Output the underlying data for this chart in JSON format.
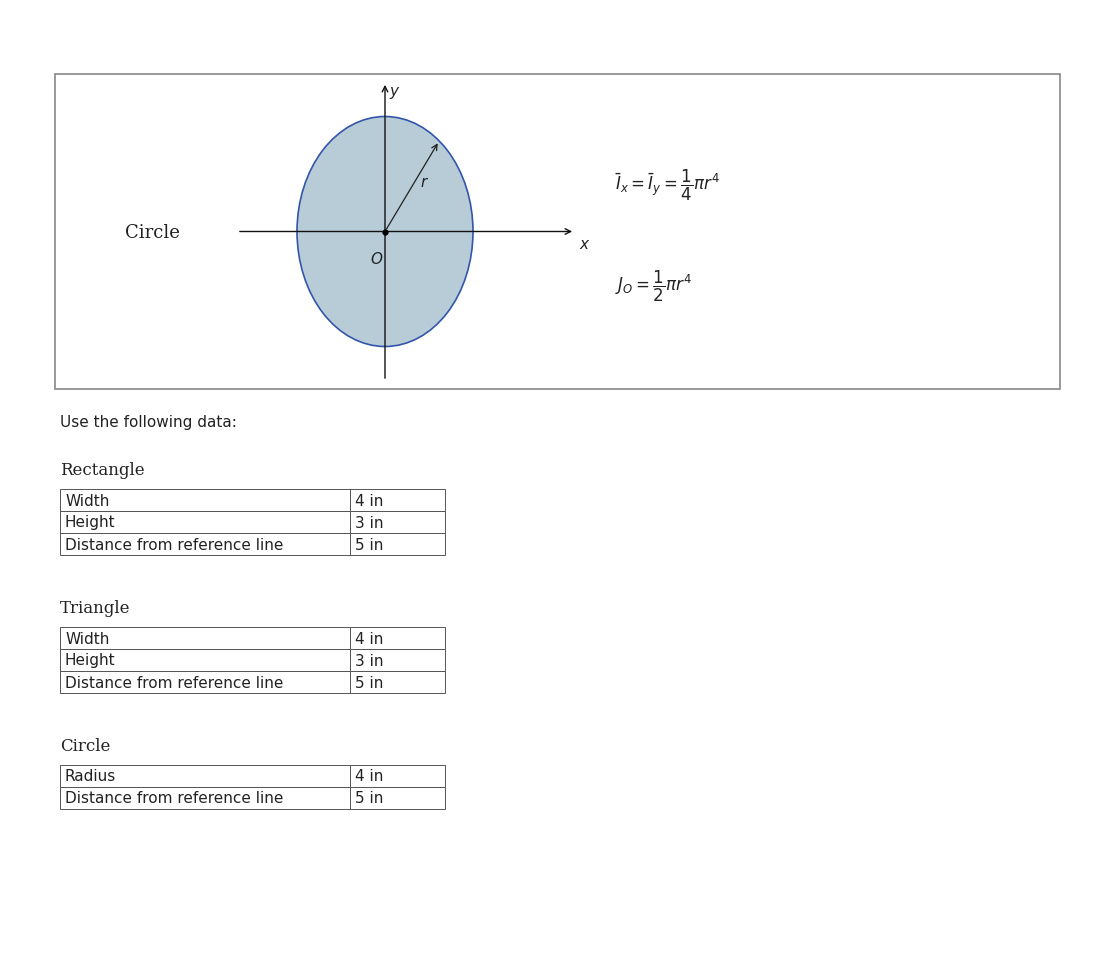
{
  "page_bg": "#ffffff",
  "outer_box_color": "#888888",
  "circle_fill": "#b8ccd8",
  "circle_edge": "#3355aa",
  "circle_label": "Circle",
  "circle_label_fontsize": 13,
  "axis_color": "#111111",
  "use_data_text": "Use the following data:",
  "rect_header": "Rectangle",
  "rect_rows": [
    [
      "Width",
      "4 in"
    ],
    [
      "Height",
      "3 in"
    ],
    [
      "Distance from reference line",
      "5 in"
    ]
  ],
  "tri_header": "Triangle",
  "tri_rows": [
    [
      "Width",
      "4 in"
    ],
    [
      "Height",
      "3 in"
    ],
    [
      "Distance from reference line",
      "5 in"
    ]
  ],
  "circ_header": "Circle",
  "circ_rows": [
    [
      "Radius",
      "4 in"
    ],
    [
      "Distance from reference line",
      "5 in"
    ]
  ],
  "text_color": "#222222",
  "header_fontsize": 12,
  "table_fontsize": 11,
  "body_fontsize": 11
}
